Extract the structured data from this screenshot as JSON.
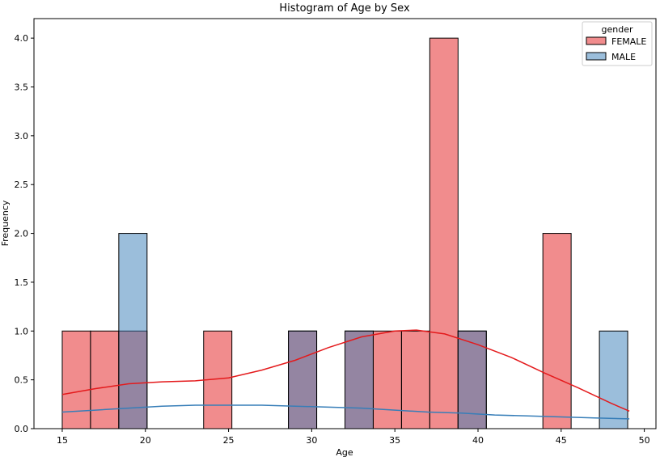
{
  "chart_data": {
    "type": "bar",
    "title": "Histogram of Age by Sex",
    "xlabel": "Age",
    "ylabel": "Frequency",
    "xlim": [
      13.3,
      50.7
    ],
    "ylim": [
      0,
      4.2
    ],
    "xticks": [
      15,
      20,
      25,
      30,
      35,
      40,
      45,
      50
    ],
    "yticks": [
      0.0,
      0.5,
      1.0,
      1.5,
      2.0,
      2.5,
      3.0,
      3.5,
      4.0
    ],
    "bin_start": 15,
    "bin_width": 1.7,
    "legend": {
      "title": "gender",
      "location": "top-right",
      "entries": [
        "FEMALE",
        "MALE"
      ]
    },
    "series": [
      {
        "name": "FEMALE",
        "color": "#e41a1c",
        "fill": "rgba(228,26,28,0.5)",
        "counts": [
          1,
          1,
          1,
          0,
          0,
          1,
          0,
          0,
          1,
          0,
          1,
          1,
          1,
          4,
          1,
          0,
          0,
          2,
          0,
          0
        ],
        "kde": [
          [
            15,
            0.35
          ],
          [
            17,
            0.41
          ],
          [
            19,
            0.46
          ],
          [
            21,
            0.48
          ],
          [
            23,
            0.49
          ],
          [
            25,
            0.52
          ],
          [
            27,
            0.6
          ],
          [
            29,
            0.7
          ],
          [
            31,
            0.83
          ],
          [
            33,
            0.94
          ],
          [
            35,
            1.0
          ],
          [
            36.3,
            1.01
          ],
          [
            38,
            0.97
          ],
          [
            40,
            0.86
          ],
          [
            42,
            0.73
          ],
          [
            44,
            0.57
          ],
          [
            46,
            0.42
          ],
          [
            48,
            0.26
          ],
          [
            49.1,
            0.18
          ]
        ]
      },
      {
        "name": "MALE",
        "color": "#377eb8",
        "fill": "rgba(55,126,184,0.5)",
        "counts": [
          0,
          0,
          2,
          0,
          0,
          0,
          0,
          0,
          1,
          0,
          1,
          0,
          0,
          0,
          1,
          0,
          0,
          0,
          0,
          1
        ],
        "kde": [
          [
            15,
            0.17
          ],
          [
            17,
            0.19
          ],
          [
            19,
            0.21
          ],
          [
            21,
            0.23
          ],
          [
            23,
            0.24
          ],
          [
            25,
            0.24
          ],
          [
            27,
            0.24
          ],
          [
            29,
            0.23
          ],
          [
            31,
            0.22
          ],
          [
            33,
            0.21
          ],
          [
            35,
            0.19
          ],
          [
            37,
            0.17
          ],
          [
            39,
            0.16
          ],
          [
            41,
            0.14
          ],
          [
            43,
            0.13
          ],
          [
            45,
            0.12
          ],
          [
            47,
            0.11
          ],
          [
            49.1,
            0.1
          ]
        ]
      }
    ]
  }
}
